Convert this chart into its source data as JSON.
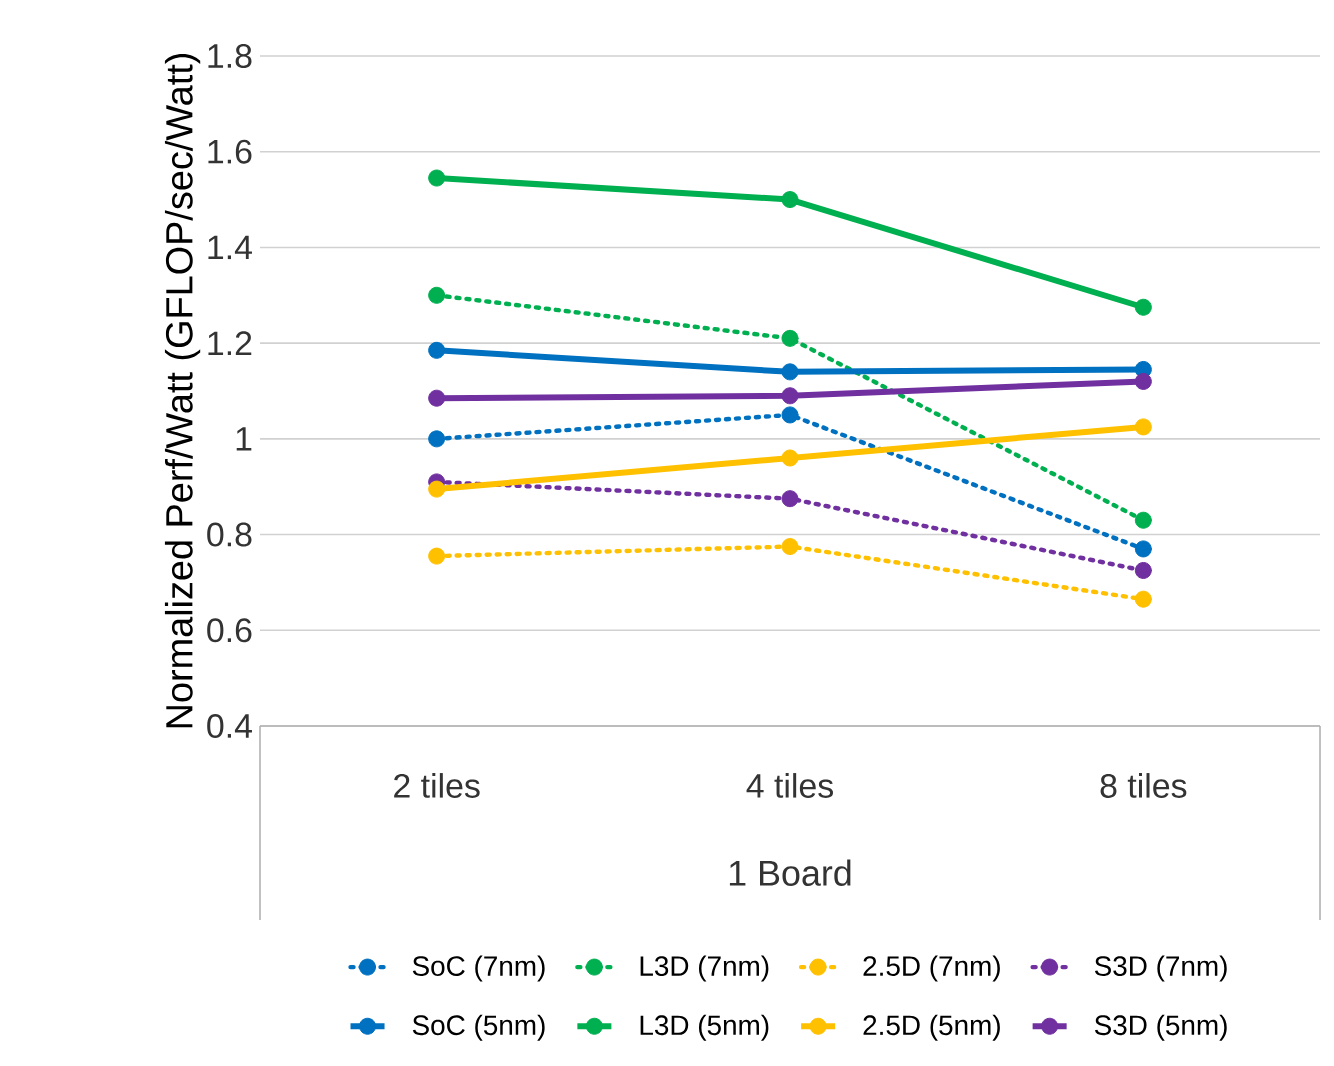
{
  "chart_data": {
    "type": "line",
    "ylabel": "Normalized Perf/Watt (GFLOP/sec/Watt)",
    "xlabel": "1 Board",
    "categories": [
      "2 tiles",
      "4 tiles",
      "8 tiles"
    ],
    "ylim": [
      0.4,
      1.8
    ],
    "yticks": [
      0.4,
      0.6,
      0.8,
      1,
      1.2,
      1.4,
      1.6,
      1.8
    ],
    "grid": "y",
    "legend": "bottom",
    "marker": "circle",
    "series": [
      {
        "name": "SoC (7nm)",
        "color": "#0070c0",
        "line_style": "dotted",
        "values": [
          1.0,
          1.05,
          0.77
        ]
      },
      {
        "name": "L3D (7nm)",
        "color": "#00b050",
        "line_style": "dotted",
        "values": [
          1.3,
          1.21,
          0.83
        ]
      },
      {
        "name": "2.5D (7nm)",
        "color": "#ffc000",
        "line_style": "dotted",
        "values": [
          0.755,
          0.775,
          0.665
        ]
      },
      {
        "name": "S3D (7nm)",
        "color": "#7030a0",
        "line_style": "dotted",
        "values": [
          0.91,
          0.875,
          0.725
        ]
      },
      {
        "name": "SoC (5nm)",
        "color": "#0070c0",
        "line_style": "solid",
        "values": [
          1.185,
          1.14,
          1.145
        ]
      },
      {
        "name": "L3D (5nm)",
        "color": "#00b050",
        "line_style": "solid",
        "values": [
          1.545,
          1.5,
          1.275
        ]
      },
      {
        "name": "2.5D (5nm)",
        "color": "#ffc000",
        "line_style": "solid",
        "values": [
          0.895,
          0.96,
          1.025
        ]
      },
      {
        "name": "S3D (5nm)",
        "color": "#7030a0",
        "line_style": "solid",
        "values": [
          1.085,
          1.09,
          1.12
        ]
      }
    ]
  }
}
